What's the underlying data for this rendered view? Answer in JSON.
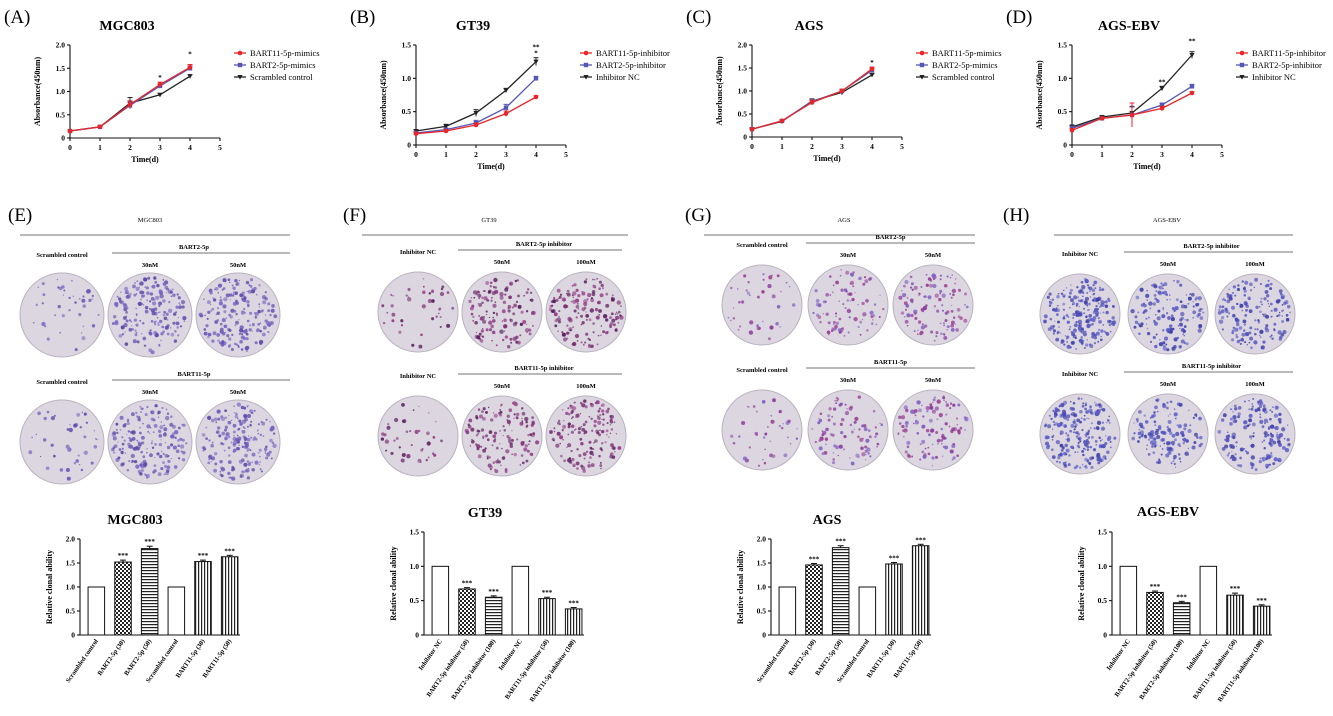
{
  "colors": {
    "red": "#e8262a",
    "blue": "#5656b4",
    "black": "#222222",
    "dish_violet": "#6b4fb0",
    "dish_magenta": "#8a2f7c"
  },
  "growth": [
    {
      "label": "(A)",
      "title": "MGC803",
      "ylabel": "Absorbance(450nm)",
      "xlabel": "Time(d)",
      "legend": [
        "BART11-5p-mimics",
        "BART2-5p-mimics",
        "Scrambled control"
      ]
    },
    {
      "label": "(B)",
      "title": "GT39",
      "ylabel": "Absorbance(450nm)",
      "xlabel": "Time(d)",
      "legend": [
        "BART11-5p-inhibitor",
        "BART2-5p-inhibitor",
        "Inhibitor NC"
      ]
    },
    {
      "label": "(C)",
      "title": "AGS",
      "ylabel": "Absorbance(450nm)",
      "xlabel": "Time(d)",
      "legend": [
        "BART11-5p-mimics",
        "BART2-5p-mimics",
        "Scrambled control"
      ]
    },
    {
      "label": "(D)",
      "title": "AGS-EBV",
      "ylabel": "Absorbance(450nm)",
      "xlabel": "Time(d)",
      "legend": [
        "BART11-5p-inhibitor",
        "BART2-5p-inhibitor",
        "Inhibitor NC"
      ]
    }
  ],
  "colony": [
    {
      "label": "(E)",
      "header": "MGC803",
      "row1": {
        "control": "Scrambled control",
        "group": "BART2-5p",
        "doses": [
          "30nM",
          "50nM"
        ]
      },
      "row2": {
        "control": "Scrambled control",
        "group": "BART11-5p",
        "doses": [
          "30nM",
          "50nM"
        ]
      }
    },
    {
      "label": "(F)",
      "header": "GT39",
      "row1": {
        "control": "Inhibitor NC",
        "group": "BART2-5p inhibitor",
        "doses": [
          "50nM",
          "100nM"
        ]
      },
      "row2": {
        "control": "Inhibitor NC",
        "group": "BART11-5p inhibitor",
        "doses": [
          "50nM",
          "100nM"
        ]
      }
    },
    {
      "label": "(G)",
      "header": "AGS",
      "row1": {
        "control": "Scrambled control",
        "group": "BART2-5p",
        "doses": [
          "30nM",
          "50nM"
        ]
      },
      "row2": {
        "control": "Scrambled control",
        "group": "BART11-5p",
        "doses": [
          "30nM",
          "50nM"
        ]
      }
    },
    {
      "label": "(H)",
      "header": "AGS-EBV",
      "row1": {
        "control": "Inhibitor NC",
        "group": "BART2-5p inhibitor",
        "doses": [
          "50nM",
          "100nM"
        ]
      },
      "row2": {
        "control": "Inhibitor NC",
        "group": "BART11-5p inhibitor",
        "doses": [
          "50nM",
          "100nM"
        ]
      }
    }
  ],
  "chart_data": [
    {
      "type": "line",
      "title": "MGC803",
      "xlabel": "Time(d)",
      "ylabel": "Absorbance(450nm)",
      "xlim": [
        0,
        5
      ],
      "ylim": [
        0,
        2.0
      ],
      "xticks": [
        0,
        1,
        2,
        3,
        4,
        5
      ],
      "yticks": [
        0,
        0.5,
        1.0,
        1.5,
        2.0
      ],
      "x": [
        0,
        1,
        2,
        3,
        4
      ],
      "series": [
        {
          "name": "BART11-5p-mimics",
          "values": [
            0.15,
            0.24,
            0.72,
            1.15,
            1.52
          ],
          "err": [
            0.01,
            0.01,
            0.08,
            0.05,
            0.06
          ]
        },
        {
          "name": "BART2-5p-mimics",
          "values": [
            0.15,
            0.24,
            0.7,
            1.12,
            1.5
          ],
          "err": [
            0.01,
            0.01,
            0.07,
            0.04,
            0.05
          ]
        },
        {
          "name": "Scrambled control",
          "values": [
            0.15,
            0.24,
            0.75,
            0.93,
            1.33
          ],
          "err": [
            0.01,
            0.01,
            0.12,
            0.03,
            0.03
          ]
        }
      ],
      "annotations": [
        {
          "x": 3,
          "text": "*"
        },
        {
          "x": 4,
          "text": "*"
        }
      ]
    },
    {
      "type": "line",
      "title": "GT39",
      "xlabel": "Time(d)",
      "ylabel": "Absorbance(450nm)",
      "xlim": [
        0,
        5
      ],
      "ylim": [
        0,
        1.5
      ],
      "xticks": [
        0,
        1,
        2,
        3,
        4,
        5
      ],
      "yticks": [
        0,
        0.5,
        1.0,
        1.5
      ],
      "x": [
        0,
        1,
        2,
        3,
        4
      ],
      "series": [
        {
          "name": "BART11-5p-inhibitor",
          "values": [
            0.17,
            0.21,
            0.3,
            0.47,
            0.72
          ],
          "err": [
            0.02,
            0.02,
            0.03,
            0.04,
            0.02
          ]
        },
        {
          "name": "BART2-5p-inhibitor",
          "values": [
            0.18,
            0.23,
            0.33,
            0.56,
            1.0
          ],
          "err": [
            0.02,
            0.02,
            0.04,
            0.05,
            0.03
          ]
        },
        {
          "name": "Inhibitor NC",
          "values": [
            0.21,
            0.28,
            0.48,
            0.82,
            1.25
          ],
          "err": [
            0.02,
            0.03,
            0.05,
            0.03,
            0.06
          ]
        }
      ],
      "annotations": [
        {
          "x": 4,
          "text": "*"
        },
        {
          "x": 4,
          "text": "**"
        }
      ]
    },
    {
      "type": "line",
      "title": "AGS",
      "xlabel": "Time(d)",
      "ylabel": "Absorbance(450nm)",
      "xlim": [
        0,
        5
      ],
      "ylim": [
        0,
        2.0
      ],
      "xticks": [
        0,
        1,
        2,
        3,
        4,
        5
      ],
      "yticks": [
        0,
        0.5,
        1.0,
        1.5,
        2.0
      ],
      "x": [
        0,
        1,
        2,
        3,
        4
      ],
      "series": [
        {
          "name": "BART11-5p-mimics",
          "values": [
            0.17,
            0.35,
            0.75,
            1.0,
            1.48
          ],
          "err": [
            0.01,
            0.02,
            0.05,
            0.04,
            0.04
          ]
        },
        {
          "name": "BART2-5p-mimics",
          "values": [
            0.17,
            0.35,
            0.77,
            1.0,
            1.45
          ],
          "err": [
            0.01,
            0.02,
            0.05,
            0.04,
            0.04
          ]
        },
        {
          "name": "Scrambled control",
          "values": [
            0.17,
            0.34,
            0.78,
            0.97,
            1.35
          ],
          "err": [
            0.01,
            0.02,
            0.05,
            0.05,
            0.03
          ]
        }
      ],
      "annotations": [
        {
          "x": 4,
          "text": "*"
        }
      ]
    },
    {
      "type": "line",
      "title": "AGS-EBV",
      "xlabel": "Time(d)",
      "ylabel": "Absorbance(450nm)",
      "xlim": [
        0,
        5
      ],
      "ylim": [
        0,
        1.5
      ],
      "xticks": [
        0,
        1,
        2,
        3,
        4,
        5
      ],
      "yticks": [
        0,
        0.5,
        1.0,
        1.5
      ],
      "x": [
        0,
        1,
        2,
        3,
        4
      ],
      "series": [
        {
          "name": "BART11-5p-inhibitor",
          "values": [
            0.22,
            0.4,
            0.45,
            0.55,
            0.78
          ],
          "err": [
            0.03,
            0.02,
            0.18,
            0.03,
            0.02
          ]
        },
        {
          "name": "BART2-5p-inhibitor",
          "values": [
            0.25,
            0.4,
            0.45,
            0.6,
            0.88
          ],
          "err": [
            0.03,
            0.02,
            0.12,
            0.03,
            0.03
          ]
        },
        {
          "name": "Inhibitor NC",
          "values": [
            0.27,
            0.42,
            0.48,
            0.85,
            1.35
          ],
          "err": [
            0.03,
            0.02,
            0.1,
            0.03,
            0.05
          ]
        }
      ],
      "annotations": [
        {
          "x": 3,
          "text": "**"
        },
        {
          "x": 4,
          "text": "**"
        }
      ]
    },
    {
      "type": "bar",
      "title": "MGC803",
      "ylabel": "Relative clonal ability",
      "ylim": [
        0,
        2.0
      ],
      "yticks": [
        0,
        0.5,
        1.0,
        1.5,
        2.0
      ],
      "categories": [
        "Scrambled control",
        "BART2-5p (30)",
        "BART2-5p (50)",
        "Scrambled control",
        "BART11-5p (30)",
        "BART11-5p (50)"
      ],
      "values": [
        1.0,
        1.52,
        1.8,
        1.0,
        1.53,
        1.63
      ],
      "err": [
        0,
        0.04,
        0.05,
        0,
        0.03,
        0.03
      ],
      "patterns": [
        "none",
        "check",
        "hline",
        "none",
        "vline",
        "vline"
      ],
      "stars": [
        "",
        "***",
        "***",
        "",
        "***",
        "***"
      ]
    },
    {
      "type": "bar",
      "title": "GT39",
      "ylabel": "Relative clonal ability",
      "ylim": [
        0,
        1.5
      ],
      "yticks": [
        0,
        0.5,
        1.0,
        1.5
      ],
      "categories": [
        "Inhibitor NC",
        "BART2-5p inhibitor (50)",
        "BART2-5p inhibitor (100)",
        "Inhibitor NC",
        "BART11-5p inhibitor (50)",
        "BART11-5p inhibitor (100)"
      ],
      "values": [
        1.0,
        0.67,
        0.55,
        1.0,
        0.53,
        0.38
      ],
      "err": [
        0,
        0.02,
        0.02,
        0,
        0.02,
        0.02
      ],
      "patterns": [
        "none",
        "check",
        "hline",
        "none",
        "vline",
        "vline"
      ],
      "stars": [
        "",
        "***",
        "***",
        "",
        "***",
        "***"
      ]
    },
    {
      "type": "bar",
      "title": "AGS",
      "ylabel": "Relative clonal ability",
      "ylim": [
        0,
        2.0
      ],
      "yticks": [
        0,
        0.5,
        1.0,
        1.5,
        2.0
      ],
      "categories": [
        "Scrambled control",
        "BART2-5p (30)",
        "BART2-5p (50)",
        "Scrambled control",
        "BART11-5p (30)",
        "BART11-5p (50)"
      ],
      "values": [
        1.0,
        1.46,
        1.82,
        1.0,
        1.48,
        1.86
      ],
      "err": [
        0,
        0.03,
        0.04,
        0,
        0.03,
        0.03
      ],
      "patterns": [
        "none",
        "check",
        "hline",
        "none",
        "vline",
        "vline"
      ],
      "stars": [
        "",
        "***",
        "***",
        "",
        "***",
        "***"
      ]
    },
    {
      "type": "bar",
      "title": "AGS-EBV",
      "ylabel": "Relative clonal ability",
      "ylim": [
        0,
        1.5
      ],
      "yticks": [
        0,
        0.5,
        1.0,
        1.5
      ],
      "categories": [
        "Inhibitor NC",
        "BART2-5p inhibitor (50)",
        "BART2-5p inhibitor (100)",
        "Inhibitor NC",
        "BART11-5p inhibitor (50)",
        "BART11-5p inhibitor (100)"
      ],
      "values": [
        1.0,
        0.62,
        0.47,
        1.0,
        0.58,
        0.42
      ],
      "err": [
        0,
        0.02,
        0.02,
        0,
        0.03,
        0.02
      ],
      "patterns": [
        "none",
        "check",
        "hline",
        "none",
        "vline",
        "vline"
      ],
      "stars": [
        "",
        "***",
        "***",
        "",
        "***",
        "***"
      ]
    }
  ]
}
